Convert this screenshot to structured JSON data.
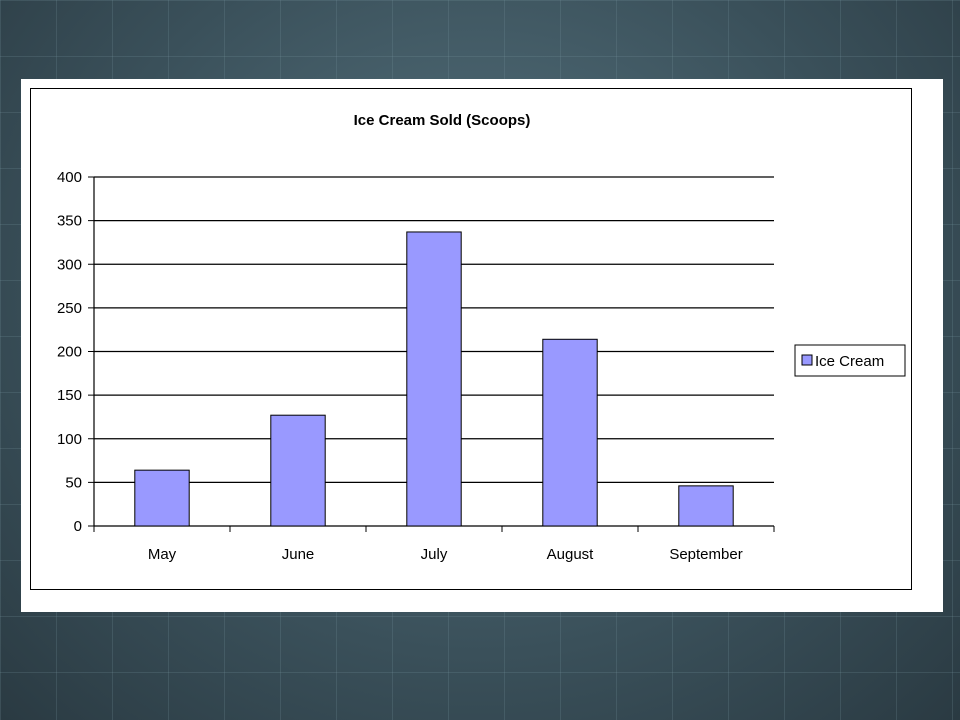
{
  "chart_data": {
    "type": "bar",
    "title": "Ice Cream Sold (Scoops)",
    "categories": [
      "May",
      "June",
      "July",
      "August",
      "September"
    ],
    "series": [
      {
        "name": "Ice Cream",
        "values": [
          64,
          127,
          337,
          214,
          46
        ],
        "color": "#9999ff"
      }
    ],
    "ylim": [
      0,
      400
    ],
    "yticks": [
      0,
      50,
      100,
      150,
      200,
      250,
      300,
      350,
      400
    ],
    "grid": true,
    "legend": "right"
  }
}
